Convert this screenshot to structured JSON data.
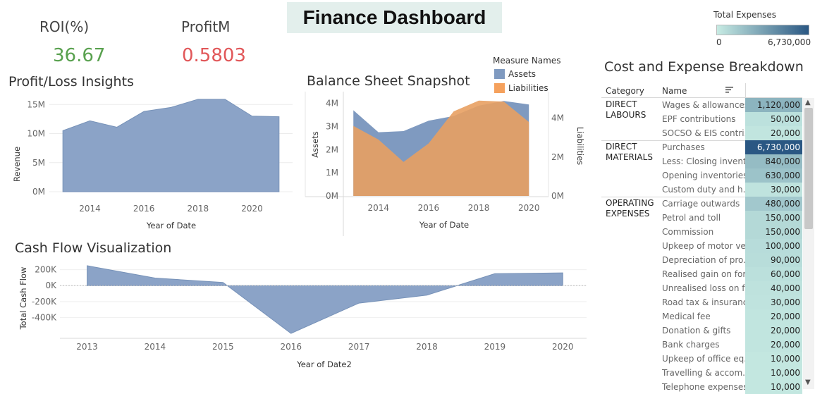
{
  "header": {
    "title": "Finance Dashboard"
  },
  "kpis": {
    "roi_label": "ROI(%)",
    "roi_value": "36.67",
    "roi_color": "#59a14f",
    "profit_label": "ProfitM",
    "profit_value": "0.5803",
    "profit_color": "#e15759"
  },
  "color_legend": {
    "title": "Total Expenses",
    "min_label": "0",
    "max_label": "6,730,000",
    "min_color": "#c7ebe3",
    "max_color": "#2a5783"
  },
  "measure_legend": {
    "title": "Measure Names",
    "items": [
      {
        "label": "Assets",
        "color": "#7f9ac0"
      },
      {
        "label": "Liabilities",
        "color": "#f5a15d"
      }
    ]
  },
  "chart_data": [
    {
      "id": "profit_loss",
      "type": "area",
      "title": "Profit/Loss Insights",
      "xlabel": "Year of Date",
      "ylabel": "Revenue",
      "x": [
        2013,
        2014,
        2015,
        2016,
        2017,
        2018,
        2019,
        2020,
        2021
      ],
      "values": [
        10.5,
        12.2,
        11.1,
        13.8,
        14.5,
        15.9,
        15.9,
        13.0,
        12.9
      ],
      "ylim": [
        0,
        16
      ],
      "yticks": [
        "0M",
        "5M",
        "10M",
        "15M"
      ],
      "xticks": [
        "2014",
        "2016",
        "2018",
        "2020"
      ],
      "color": "#8ba3c7"
    },
    {
      "id": "balance_sheet",
      "type": "area",
      "title": "Balance Sheet Snapshot",
      "xlabel": "Year of Date",
      "ylabel": "Assets",
      "y2label": "Liabilities",
      "x": [
        2013,
        2014,
        2015,
        2016,
        2017,
        2018,
        2019,
        2020
      ],
      "series": [
        {
          "name": "Assets",
          "values": [
            3.7,
            2.75,
            2.8,
            3.25,
            3.45,
            3.9,
            4.1,
            3.95
          ],
          "color": "#7f9ac0"
        },
        {
          "name": "Liabilities",
          "values": [
            3.6,
            2.9,
            1.75,
            2.7,
            4.35,
            4.9,
            4.85,
            3.8
          ],
          "color": "#e8a062"
        }
      ],
      "ylim": [
        0,
        4.2
      ],
      "y2lim": [
        0,
        5.0
      ],
      "yticks": [
        "0M",
        "1M",
        "2M",
        "3M",
        "4M"
      ],
      "y2ticks": [
        "0M",
        "2M",
        "4M"
      ],
      "xticks": [
        "2014",
        "2016",
        "2018",
        "2020"
      ]
    },
    {
      "id": "cash_flow",
      "type": "area",
      "title": "Cash Flow Visualization",
      "xlabel": "Year of Date2",
      "ylabel": "Total Cash Flow",
      "x": [
        2013,
        2014,
        2015,
        2016,
        2017,
        2018,
        2019,
        2020
      ],
      "values": [
        250,
        95,
        40,
        -600,
        -220,
        -120,
        150,
        160
      ],
      "ylim": [
        -600,
        250
      ],
      "yticks": [
        "200K",
        "0K",
        "-200K",
        "-400K"
      ],
      "xticks": [
        "2013",
        "2014",
        "2015",
        "2016",
        "2017",
        "2018",
        "2019",
        "2020"
      ],
      "color": "#8ba3c7"
    },
    {
      "id": "cost_breakdown",
      "type": "table",
      "title": "Cost and Expense Breakdown",
      "columns": [
        "Category",
        "Name"
      ],
      "groups": [
        {
          "category": "DIRECT LABOURS",
          "rows": [
            {
              "name": "Wages & allowances",
              "value": 1120000,
              "label": "1,120,000"
            },
            {
              "name": "EPF contributions",
              "value": 50000,
              "label": "50,000"
            },
            {
              "name": "SOCSO & EIS contri..",
              "value": 20000,
              "label": "20,000"
            }
          ]
        },
        {
          "category": "DIRECT MATERIALS",
          "rows": [
            {
              "name": "Purchases",
              "value": 6730000,
              "label": "6,730,000"
            },
            {
              "name": "Less: Closing invent..",
              "value": 840000,
              "label": "840,000"
            },
            {
              "name": "Opening inventories",
              "value": 630000,
              "label": "630,000"
            },
            {
              "name": "Custom duty and h..",
              "value": 30000,
              "label": "30,000"
            }
          ]
        },
        {
          "category": "OPERATING EXPENSES",
          "rows": [
            {
              "name": "Carriage outwards",
              "value": 480000,
              "label": "480,000"
            },
            {
              "name": "Petrol and toll",
              "value": 150000,
              "label": "150,000"
            },
            {
              "name": "Commission",
              "value": 150000,
              "label": "150,000"
            },
            {
              "name": "Upkeep of motor ve..",
              "value": 100000,
              "label": "100,000"
            },
            {
              "name": "Depreciation of pro..",
              "value": 90000,
              "label": "90,000"
            },
            {
              "name": "Realised gain on for..",
              "value": 60000,
              "label": "60,000"
            },
            {
              "name": "Unrealised loss on f..",
              "value": 40000,
              "label": "40,000"
            },
            {
              "name": "Road tax & insurance",
              "value": 30000,
              "label": "30,000"
            },
            {
              "name": "Medical fee",
              "value": 20000,
              "label": "20,000"
            },
            {
              "name": "Donation & gifts",
              "value": 20000,
              "label": "20,000"
            },
            {
              "name": "Bank charges",
              "value": 20000,
              "label": "20,000"
            },
            {
              "name": "Upkeep of office eq..",
              "value": 10000,
              "label": "10,000"
            },
            {
              "name": "Travelling & accom..",
              "value": 10000,
              "label": "10,000"
            },
            {
              "name": "Telephone expenses",
              "value": 10000,
              "label": "10,000"
            }
          ]
        }
      ]
    }
  ]
}
